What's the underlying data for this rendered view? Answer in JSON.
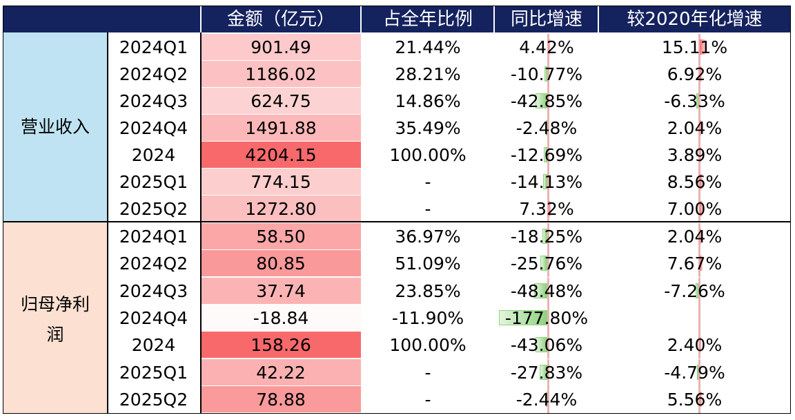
{
  "header": {
    "amount": "金额（亿元）",
    "share": "占全年比例",
    "yoy": "同比增速",
    "vs2020": "较2020年化增速"
  },
  "colors": {
    "header_bg": "#14225e",
    "revenue_band": "#bfe3f2",
    "profit_band": "#fce0d2",
    "heat_max": "#f86b6b",
    "positive_bar": "#f8696b",
    "negative_bar": "#b5e5a8"
  },
  "groups": [
    {
      "label": "营业收入",
      "rows": [
        {
          "period": "2024Q1",
          "amount": "901.49",
          "share": "21.44%",
          "yoy": "4.42%",
          "vs2020": "15.11%"
        },
        {
          "period": "2024Q2",
          "amount": "1186.02",
          "share": "28.21%",
          "yoy": "-10.77%",
          "vs2020": "6.92%"
        },
        {
          "period": "2024Q3",
          "amount": "624.75",
          "share": "14.86%",
          "yoy": "-42.85%",
          "vs2020": "-6.33%"
        },
        {
          "period": "2024Q4",
          "amount": "1491.88",
          "share": "35.49%",
          "yoy": "-2.48%",
          "vs2020": "2.04%"
        },
        {
          "period": "2024",
          "amount": "4204.15",
          "share": "100.00%",
          "yoy": "-12.69%",
          "vs2020": "3.89%"
        },
        {
          "period": "2025Q1",
          "amount": "774.15",
          "share": "-",
          "yoy": "-14.13%",
          "vs2020": "8.56%"
        },
        {
          "period": "2025Q2",
          "amount": "1272.80",
          "share": "-",
          "yoy": "7.32%",
          "vs2020": "7.00%"
        }
      ]
    },
    {
      "label": "归母净利润",
      "rows": [
        {
          "period": "2024Q1",
          "amount": "58.50",
          "share": "36.97%",
          "yoy": "-18.25%",
          "vs2020": "2.04%"
        },
        {
          "period": "2024Q2",
          "amount": "80.85",
          "share": "51.09%",
          "yoy": "-25.76%",
          "vs2020": "7.67%"
        },
        {
          "period": "2024Q3",
          "amount": "37.74",
          "share": "23.85%",
          "yoy": "-48.48%",
          "vs2020": "-7.26%"
        },
        {
          "period": "2024Q4",
          "amount": "-18.84",
          "share": "-11.90%",
          "yoy": "-177.80%",
          "vs2020": ""
        },
        {
          "period": "2024",
          "amount": "158.26",
          "share": "100.00%",
          "yoy": "-43.06%",
          "vs2020": "2.40%"
        },
        {
          "period": "2025Q1",
          "amount": "42.22",
          "share": "-",
          "yoy": "-27.83%",
          "vs2020": "-4.79%"
        },
        {
          "period": "2025Q2",
          "amount": "78.88",
          "share": "-",
          "yoy": "-2.44%",
          "vs2020": "5.56%"
        }
      ]
    }
  ]
}
